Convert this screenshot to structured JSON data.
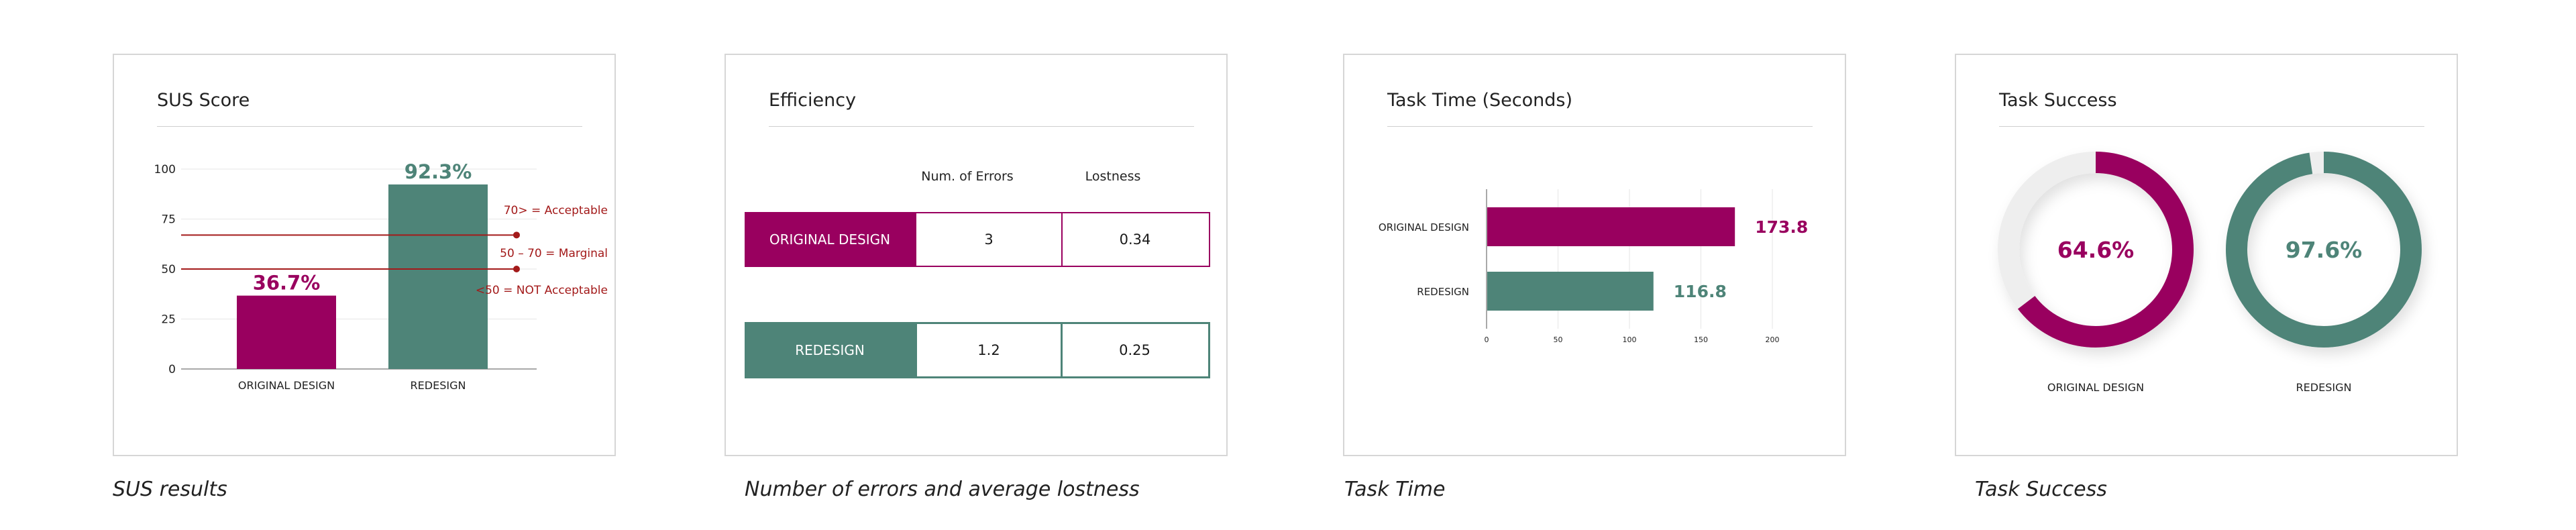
{
  "colors": {
    "original": "#99005f",
    "redesign": "#4e8478",
    "track": "#eeeeee",
    "threshold": "#a31a1a"
  },
  "panels": {
    "sus": {
      "title": "SUS Score",
      "caption": "SUS results"
    },
    "efficiency": {
      "title": "Efficiency",
      "caption": "Number of errors and average lostness"
    },
    "time": {
      "title": "Task Time (Seconds)",
      "caption": "Task Time"
    },
    "success": {
      "title": "Task Success",
      "caption": "Task Success"
    }
  },
  "chart_data": [
    {
      "type": "bar",
      "title": "SUS Score",
      "categories": [
        "ORIGINAL DESIGN",
        "REDESIGN"
      ],
      "values": [
        36.7,
        92.3
      ],
      "value_labels": [
        "36.7%",
        "92.3%"
      ],
      "ylim": [
        0,
        100
      ],
      "yticks": [
        0,
        25,
        50,
        75,
        100
      ],
      "grid": true,
      "annotations": [
        {
          "text": "70> = Acceptable",
          "y": 67
        },
        {
          "text": "50 – 70 = Marginal",
          "y": 50
        },
        {
          "text": "<50 = NOT Acceptable"
        }
      ]
    },
    {
      "type": "table",
      "title": "Efficiency",
      "columns": [
        "Num. of Errors",
        "Lostness"
      ],
      "rows": [
        {
          "label": "ORIGINAL DESIGN",
          "values": [
            "3",
            "0.34"
          ]
        },
        {
          "label": "REDESIGN",
          "values": [
            "1.2",
            "0.25"
          ]
        }
      ]
    },
    {
      "type": "bar",
      "orientation": "horizontal",
      "title": "Task Time (Seconds)",
      "categories": [
        "ORIGINAL DESIGN",
        "REDESIGN"
      ],
      "values": [
        173.8,
        116.8
      ],
      "value_labels": [
        "173.8",
        "116.8"
      ],
      "xlim": [
        0,
        200
      ],
      "xticks": [
        0,
        50,
        100,
        150,
        200
      ],
      "grid": true
    },
    {
      "type": "pie",
      "title": "Task Success",
      "categories": [
        "ORIGINAL DESIGN",
        "REDESIGN"
      ],
      "values": [
        64.6,
        97.6
      ],
      "value_labels": [
        "64.6%",
        "97.6%"
      ]
    }
  ]
}
